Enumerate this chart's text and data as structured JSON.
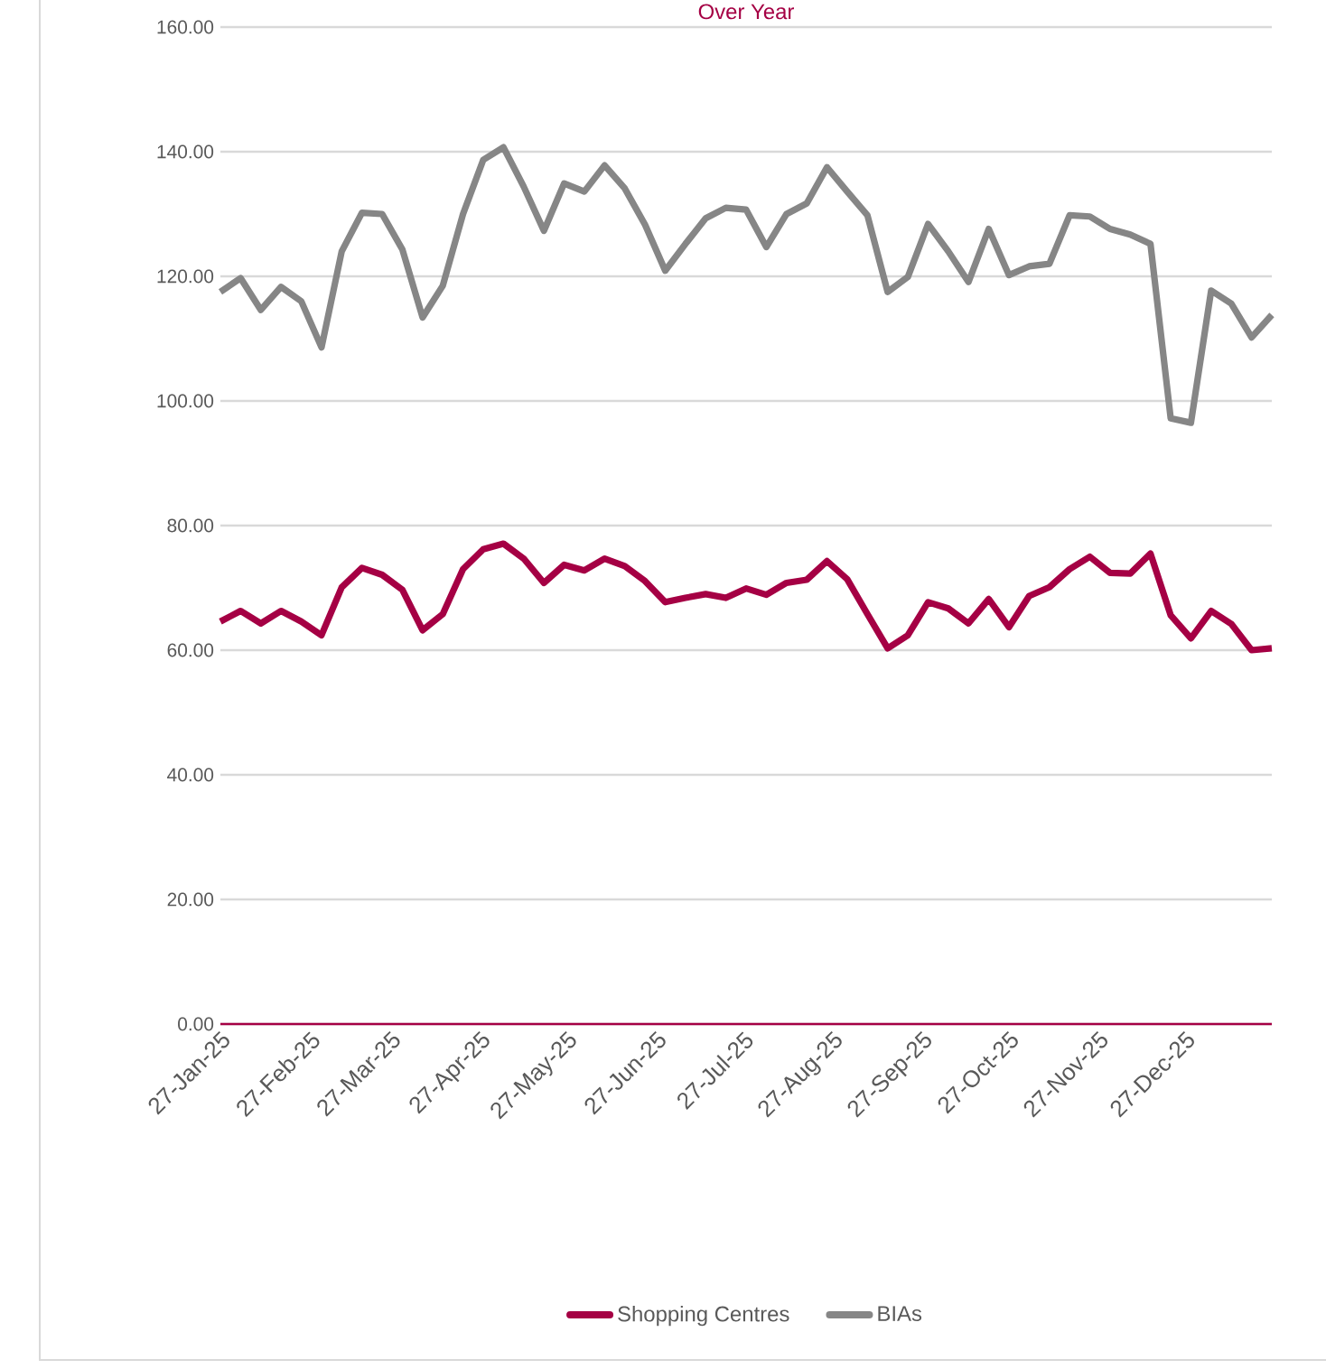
{
  "chart_data": {
    "type": "line",
    "title": "Over Year",
    "x": [
      "2025-01-27",
      "2025-02-03",
      "2025-02-10",
      "2025-02-17",
      "2025-02-24",
      "2025-03-03",
      "2025-03-10",
      "2025-03-17",
      "2025-03-24",
      "2025-03-31",
      "2025-04-07",
      "2025-04-14",
      "2025-04-21",
      "2025-04-28",
      "2025-05-05",
      "2025-05-12",
      "2025-05-19",
      "2025-05-26",
      "2025-06-02",
      "2025-06-09",
      "2025-06-16",
      "2025-06-23",
      "2025-06-30",
      "2025-07-07",
      "2025-07-14",
      "2025-07-21",
      "2025-07-28",
      "2025-08-04",
      "2025-08-11",
      "2025-08-18",
      "2025-08-25",
      "2025-09-01",
      "2025-09-08",
      "2025-09-15",
      "2025-09-22",
      "2025-09-29",
      "2025-10-06",
      "2025-10-13",
      "2025-10-20",
      "2025-10-27",
      "2025-11-03",
      "2025-11-10",
      "2025-11-17",
      "2025-11-24",
      "2025-12-01",
      "2025-12-08",
      "2025-12-15",
      "2025-12-22",
      "2025-12-29",
      "2026-01-05",
      "2026-01-12",
      "2026-01-19",
      "2026-01-26"
    ],
    "series": [
      {
        "name": "Shopping Centres",
        "color": "#a50044",
        "values": [
          64.6,
          66.3,
          64.3,
          66.3,
          64.6,
          62.4,
          70.1,
          73.2,
          72.1,
          69.7,
          63.2,
          65.8,
          73.0,
          76.2,
          77.1,
          74.7,
          70.8,
          73.7,
          72.8,
          74.7,
          73.5,
          71.1,
          67.7,
          68.4,
          69.0,
          68.4,
          69.9,
          68.9,
          70.8,
          71.3,
          74.3,
          71.4,
          65.8,
          60.3,
          62.4,
          67.7,
          66.7,
          64.3,
          68.2,
          63.7,
          68.7,
          70.1,
          73.0,
          75.0,
          72.4,
          72.3,
          75.5,
          65.6,
          61.9,
          66.3,
          64.2,
          60.0,
          60.3
        ]
      },
      {
        "name": "BIAs",
        "color": "#868686",
        "values": [
          117.5,
          119.7,
          114.6,
          118.3,
          116.0,
          108.6,
          124.0,
          130.2,
          130.0,
          124.3,
          113.4,
          118.5,
          130.0,
          138.7,
          140.7,
          134.4,
          127.3,
          134.9,
          133.6,
          137.8,
          134.1,
          128.3,
          120.9,
          125.2,
          129.3,
          131.0,
          130.7,
          124.7,
          130.0,
          131.7,
          137.5,
          133.6,
          129.8,
          117.5,
          119.9,
          128.4,
          124.0,
          119.1,
          127.6,
          120.2,
          121.6,
          122.0,
          129.8,
          129.6,
          127.6,
          126.7,
          125.2,
          97.2,
          96.5,
          117.7,
          115.6,
          110.2,
          113.8
        ]
      }
    ],
    "xlim": [
      "2025-01-27",
      "2026-01-26"
    ],
    "xticks": [
      {
        "value": "2025-01-27",
        "label": "27-Jan-25"
      },
      {
        "value": "2025-02-27",
        "label": "27-Feb-25"
      },
      {
        "value": "2025-03-27",
        "label": "27-Mar-25"
      },
      {
        "value": "2025-04-27",
        "label": "27-Apr-25"
      },
      {
        "value": "2025-05-27",
        "label": "27-May-25"
      },
      {
        "value": "2025-06-27",
        "label": "27-Jun-25"
      },
      {
        "value": "2025-07-27",
        "label": "27-Jul-25"
      },
      {
        "value": "2025-08-27",
        "label": "27-Aug-25"
      },
      {
        "value": "2025-09-27",
        "label": "27-Sep-25"
      },
      {
        "value": "2025-10-27",
        "label": "27-Oct-25"
      },
      {
        "value": "2025-11-27",
        "label": "27-Nov-25"
      },
      {
        "value": "2025-12-27",
        "label": "27-Dec-25"
      }
    ],
    "ylim": [
      0,
      160
    ],
    "yticks": [
      {
        "value": 0,
        "label": "0.00"
      },
      {
        "value": 20,
        "label": "20.00"
      },
      {
        "value": 40,
        "label": "40.00"
      },
      {
        "value": 60,
        "label": "60.00"
      },
      {
        "value": 80,
        "label": "80.00"
      },
      {
        "value": 100,
        "label": "100.00"
      },
      {
        "value": 120,
        "label": "120.00"
      },
      {
        "value": 140,
        "label": "140.00"
      },
      {
        "value": 160,
        "label": "160.00"
      }
    ],
    "grid": "y",
    "legend": "bottom",
    "marker": "none",
    "line_style": "solid"
  }
}
